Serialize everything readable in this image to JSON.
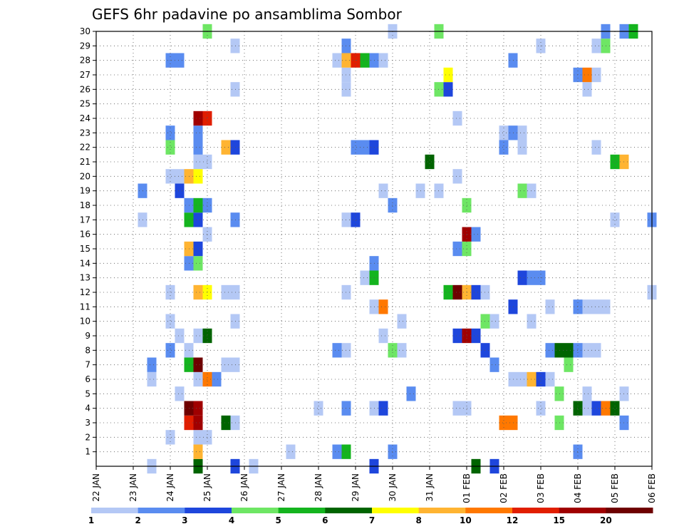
{
  "chart_data": {
    "type": "heatmap",
    "title": "GEFS 6hr padavine po ansamblima Sombor",
    "xlabel": "",
    "ylabel": "",
    "x_ticks": [
      "22 JAN",
      "23 JAN",
      "24 JAN",
      "25 JAN",
      "26 JAN",
      "27 JAN",
      "28 JAN",
      "29 JAN",
      "30 JAN",
      "31 JAN",
      "01 FEB",
      "02 FEB",
      "03 FEB",
      "04 FEB",
      "05 FEB",
      "06 FEB"
    ],
    "y_ticks": [
      "1",
      "2",
      "3",
      "4",
      "5",
      "6",
      "7",
      "8",
      "9",
      "10",
      "11",
      "12",
      "13",
      "14",
      "15",
      "16",
      "17",
      "18",
      "19",
      "20",
      "21",
      "22",
      "23",
      "24",
      "25",
      "26",
      "27",
      "28",
      "29",
      "30"
    ],
    "x_range": [
      0,
      60
    ],
    "y_range": [
      0,
      30
    ],
    "grid": true,
    "colorbar": {
      "colors": [
        "#b4c8f5",
        "#5a8cf0",
        "#1e46dc",
        "#6ee664",
        "#14b41e",
        "#006400",
        "#ffff00",
        "#ffb432",
        "#ff7800",
        "#e11e00",
        "#a00000",
        "#6e0000"
      ],
      "labels": [
        "1",
        "2",
        "3",
        "4",
        "5",
        "6",
        "7",
        "8",
        "10",
        "12",
        "15",
        "20"
      ]
    },
    "cells": [
      [
        6,
        0,
        1
      ],
      [
        11,
        0,
        6
      ],
      [
        15,
        0,
        3
      ],
      [
        17,
        0,
        1
      ],
      [
        30,
        0,
        3
      ],
      [
        41,
        0,
        6
      ],
      [
        43,
        0,
        3
      ],
      [
        11,
        1,
        8
      ],
      [
        21,
        1,
        1
      ],
      [
        26,
        1,
        2
      ],
      [
        27,
        1,
        5
      ],
      [
        32,
        1,
        2
      ],
      [
        52,
        1,
        2
      ],
      [
        8,
        2,
        1
      ],
      [
        11,
        2,
        1
      ],
      [
        12,
        2,
        1
      ],
      [
        10,
        3,
        10
      ],
      [
        11,
        3,
        11
      ],
      [
        14,
        3,
        6
      ],
      [
        15,
        3,
        1
      ],
      [
        44,
        3,
        9
      ],
      [
        45,
        3,
        9
      ],
      [
        50,
        3,
        4
      ],
      [
        57,
        3,
        2
      ],
      [
        10,
        4,
        12
      ],
      [
        11,
        4,
        11
      ],
      [
        24,
        4,
        1
      ],
      [
        27,
        4,
        2
      ],
      [
        30,
        4,
        1
      ],
      [
        31,
        4,
        3
      ],
      [
        39,
        4,
        1
      ],
      [
        40,
        4,
        1
      ],
      [
        48,
        4,
        1
      ],
      [
        52,
        4,
        6
      ],
      [
        53,
        4,
        1
      ],
      [
        54,
        4,
        3
      ],
      [
        55,
        4,
        9
      ],
      [
        56,
        4,
        6
      ],
      [
        9,
        5,
        1
      ],
      [
        34,
        5,
        2
      ],
      [
        50,
        5,
        4
      ],
      [
        53,
        5,
        1
      ],
      [
        57,
        5,
        1
      ],
      [
        6,
        6,
        1
      ],
      [
        11,
        6,
        1
      ],
      [
        12,
        6,
        9
      ],
      [
        13,
        6,
        2
      ],
      [
        45,
        6,
        1
      ],
      [
        46,
        6,
        1
      ],
      [
        47,
        6,
        8
      ],
      [
        48,
        6,
        3
      ],
      [
        49,
        6,
        1
      ],
      [
        6,
        7,
        2
      ],
      [
        10,
        7,
        5
      ],
      [
        11,
        7,
        12
      ],
      [
        14,
        7,
        1
      ],
      [
        15,
        7,
        1
      ],
      [
        43,
        7,
        2
      ],
      [
        51,
        7,
        4
      ],
      [
        8,
        8,
        2
      ],
      [
        10,
        8,
        1
      ],
      [
        26,
        8,
        2
      ],
      [
        27,
        8,
        1
      ],
      [
        32,
        8,
        4
      ],
      [
        33,
        8,
        1
      ],
      [
        42,
        8,
        3
      ],
      [
        49,
        8,
        2
      ],
      [
        50,
        8,
        6
      ],
      [
        51,
        8,
        6
      ],
      [
        52,
        8,
        2
      ],
      [
        53,
        8,
        1
      ],
      [
        54,
        8,
        1
      ],
      [
        9,
        9,
        1
      ],
      [
        11,
        9,
        1
      ],
      [
        12,
        9,
        6
      ],
      [
        31,
        9,
        1
      ],
      [
        39,
        9,
        3
      ],
      [
        40,
        9,
        11
      ],
      [
        41,
        9,
        3
      ],
      [
        8,
        10,
        1
      ],
      [
        15,
        10,
        1
      ],
      [
        33,
        10,
        1
      ],
      [
        42,
        10,
        4
      ],
      [
        43,
        10,
        1
      ],
      [
        47,
        10,
        1
      ],
      [
        30,
        11,
        1
      ],
      [
        31,
        11,
        9
      ],
      [
        45,
        11,
        3
      ],
      [
        49,
        11,
        1
      ],
      [
        52,
        11,
        2
      ],
      [
        53,
        11,
        1
      ],
      [
        54,
        11,
        1
      ],
      [
        55,
        11,
        1
      ],
      [
        8,
        12,
        1
      ],
      [
        11,
        12,
        8
      ],
      [
        12,
        12,
        7
      ],
      [
        14,
        12,
        1
      ],
      [
        15,
        12,
        1
      ],
      [
        27,
        12,
        1
      ],
      [
        38,
        12,
        5
      ],
      [
        39,
        12,
        12
      ],
      [
        40,
        12,
        8
      ],
      [
        41,
        12,
        3
      ],
      [
        42,
        12,
        1
      ],
      [
        60,
        12,
        1
      ],
      [
        29,
        13,
        1
      ],
      [
        30,
        13,
        5
      ],
      [
        46,
        13,
        3
      ],
      [
        47,
        13,
        2
      ],
      [
        48,
        13,
        2
      ],
      [
        10,
        14,
        2
      ],
      [
        11,
        14,
        4
      ],
      [
        30,
        14,
        2
      ],
      [
        10,
        15,
        8
      ],
      [
        11,
        15,
        3
      ],
      [
        39,
        15,
        2
      ],
      [
        40,
        15,
        4
      ],
      [
        12,
        16,
        1
      ],
      [
        40,
        16,
        11
      ],
      [
        41,
        16,
        2
      ],
      [
        5,
        17,
        1
      ],
      [
        10,
        17,
        5
      ],
      [
        11,
        17,
        3
      ],
      [
        15,
        17,
        2
      ],
      [
        27,
        17,
        1
      ],
      [
        28,
        17,
        3
      ],
      [
        56,
        17,
        1
      ],
      [
        60,
        17,
        2
      ],
      [
        10,
        18,
        2
      ],
      [
        11,
        18,
        5
      ],
      [
        12,
        18,
        2
      ],
      [
        32,
        18,
        2
      ],
      [
        40,
        18,
        4
      ],
      [
        5,
        19,
        2
      ],
      [
        9,
        19,
        3
      ],
      [
        31,
        19,
        1
      ],
      [
        35,
        19,
        1
      ],
      [
        37,
        19,
        1
      ],
      [
        46,
        19,
        4
      ],
      [
        47,
        19,
        1
      ],
      [
        8,
        20,
        1
      ],
      [
        9,
        20,
        1
      ],
      [
        10,
        20,
        8
      ],
      [
        11,
        20,
        7
      ],
      [
        39,
        20,
        1
      ],
      [
        11,
        21,
        1
      ],
      [
        12,
        21,
        1
      ],
      [
        36,
        21,
        6
      ],
      [
        56,
        21,
        5
      ],
      [
        57,
        21,
        8
      ],
      [
        8,
        22,
        4
      ],
      [
        11,
        22,
        2
      ],
      [
        14,
        22,
        8
      ],
      [
        15,
        22,
        3
      ],
      [
        28,
        22,
        2
      ],
      [
        29,
        22,
        2
      ],
      [
        30,
        22,
        3
      ],
      [
        44,
        22,
        2
      ],
      [
        46,
        22,
        1
      ],
      [
        54,
        22,
        1
      ],
      [
        8,
        23,
        2
      ],
      [
        11,
        23,
        2
      ],
      [
        44,
        23,
        1
      ],
      [
        45,
        23,
        2
      ],
      [
        46,
        23,
        1
      ],
      [
        11,
        24,
        11
      ],
      [
        12,
        24,
        10
      ],
      [
        39,
        24,
        1
      ],
      [
        15,
        26,
        1
      ],
      [
        27,
        26,
        1
      ],
      [
        37,
        26,
        4
      ],
      [
        38,
        26,
        3
      ],
      [
        53,
        26,
        1
      ],
      [
        27,
        27,
        1
      ],
      [
        38,
        27,
        7
      ],
      [
        52,
        27,
        2
      ],
      [
        53,
        27,
        9
      ],
      [
        54,
        27,
        1
      ],
      [
        8,
        28,
        2
      ],
      [
        9,
        28,
        2
      ],
      [
        26,
        28,
        1
      ],
      [
        27,
        28,
        8
      ],
      [
        28,
        28,
        10
      ],
      [
        29,
        28,
        5
      ],
      [
        30,
        28,
        2
      ],
      [
        31,
        28,
        1
      ],
      [
        45,
        28,
        2
      ],
      [
        15,
        29,
        1
      ],
      [
        27,
        29,
        2
      ],
      [
        48,
        29,
        1
      ],
      [
        54,
        29,
        1
      ],
      [
        55,
        29,
        4
      ],
      [
        12,
        30,
        4
      ],
      [
        32,
        30,
        1
      ],
      [
        37,
        30,
        4
      ],
      [
        55,
        30,
        2
      ],
      [
        57,
        30,
        2
      ],
      [
        58,
        30,
        5
      ]
    ]
  }
}
